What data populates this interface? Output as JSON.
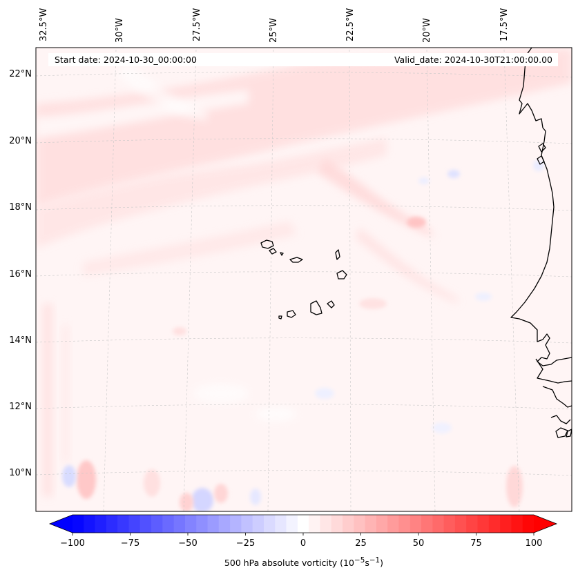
{
  "map": {
    "header": {
      "start_date": "Start date: 2024-10-30_00:00:00",
      "valid_date": "Valid_date: 2024-10-30T21:00:00.00"
    },
    "lon_labels": [
      "32.5°W",
      "30°W",
      "27.5°W",
      "25°W",
      "22.5°W",
      "20°W",
      "17.5°W"
    ],
    "lat_labels": [
      "22°N",
      "20°N",
      "18°N",
      "16°N",
      "14°N",
      "12°N",
      "10°N"
    ],
    "colors": {
      "min": "#0000ff",
      "mid": "#ffffff",
      "max": "#ff0000",
      "field_background": "#fff5f5",
      "coastline": "#000000",
      "gridline": "#c8c8c8"
    }
  },
  "colorbar": {
    "ticks": [
      "−100",
      "−75",
      "−50",
      "−25",
      "0",
      "25",
      "50",
      "75",
      "100"
    ],
    "vmin": -100,
    "vmax": 100,
    "levels": 41,
    "label_prefix": "500 hPa absolute vorticity (10",
    "label_exp1": "−5",
    "label_mid": "s",
    "label_exp2": "−1",
    "label_suffix": ")"
  }
}
